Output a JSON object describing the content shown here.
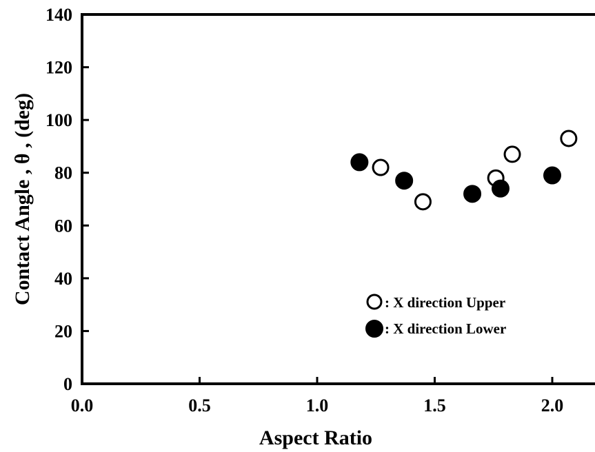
{
  "chart_data": {
    "type": "scatter",
    "xlabel": "Aspect  Ratio",
    "ylabel": "Contact Angle , θ , (deg)",
    "xlim": [
      0.0,
      2.2
    ],
    "ylim": [
      0,
      140
    ],
    "x_ticks": [
      "0.0",
      "0.5",
      "1.0",
      "1.5",
      "2.0"
    ],
    "y_ticks": [
      "0",
      "20",
      "40",
      "60",
      "80",
      "100",
      "120",
      "140"
    ],
    "grid": false,
    "legend_position": "lower-right",
    "series": [
      {
        "name": ": X  direction  Upper",
        "marker": "open-circle",
        "points": [
          [
            1.27,
            82
          ],
          [
            1.45,
            69
          ],
          [
            1.76,
            78
          ],
          [
            1.83,
            87
          ],
          [
            2.07,
            93
          ]
        ]
      },
      {
        "name": ": X  direction  Lower",
        "marker": "filled-circle",
        "points": [
          [
            1.18,
            84
          ],
          [
            1.37,
            77
          ],
          [
            1.66,
            72
          ],
          [
            1.78,
            74
          ],
          [
            2.0,
            79
          ]
        ]
      }
    ]
  }
}
